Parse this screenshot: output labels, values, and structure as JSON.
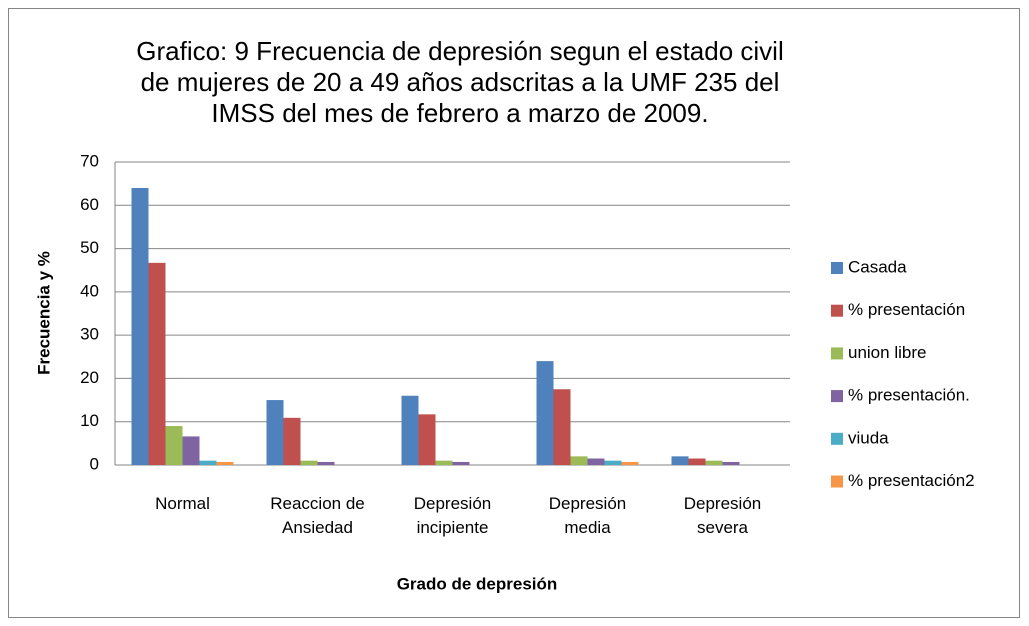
{
  "chart_data": {
    "type": "bar",
    "title": "Grafico: 9 Frecuencia de depresión segun el estado civil de mujeres de 20 a 49 años adscritas a la UMF 235 del IMSS del mes de febrero a marzo de 2009.",
    "x_label": "Grado de depresión",
    "y_label": "Frecuencia y %",
    "categories": [
      "Normal",
      "Reaccion de Ansiedad",
      "Depresión incipiente",
      "Depresión media",
      "Depresión severa"
    ],
    "series": [
      {
        "name": "Casada",
        "color": "#4f81bd",
        "values": [
          64,
          15,
          16,
          24,
          2
        ]
      },
      {
        "name": "% presentación",
        "color": "#c0504d",
        "values": [
          46.7,
          10.9,
          11.7,
          17.5,
          1.5
        ]
      },
      {
        "name": "union libre",
        "color": "#9bbb59",
        "values": [
          9,
          1,
          1,
          2,
          1
        ]
      },
      {
        "name": "% presentación.",
        "color": "#8064a2",
        "values": [
          6.6,
          0.7,
          0.7,
          1.5,
          0.7
        ]
      },
      {
        "name": "viuda",
        "color": "#4bacc6",
        "values": [
          1,
          0,
          0,
          1,
          0
        ]
      },
      {
        "name": "% presentación2",
        "color": "#f79646",
        "values": [
          0.7,
          0,
          0,
          0.7,
          0
        ]
      }
    ],
    "ylim": [
      0,
      70
    ],
    "yticks": [
      0,
      10,
      20,
      30,
      40,
      50,
      60,
      70
    ],
    "grid": true,
    "legend": "right"
  }
}
